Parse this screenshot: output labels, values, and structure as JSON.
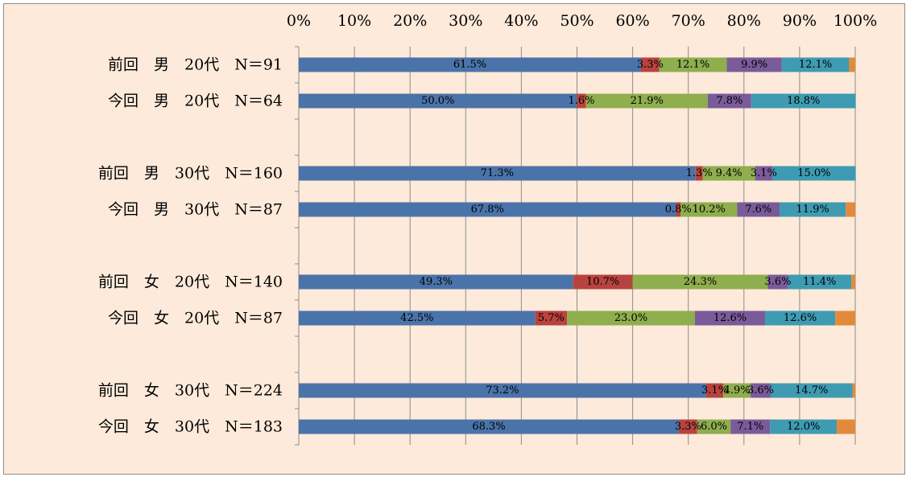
{
  "chart_data": {
    "type": "bar",
    "orientation": "horizontal",
    "stacked": "percent",
    "xlim": [
      0,
      100
    ],
    "x_ticks": [
      "0%",
      "10%",
      "20%",
      "30%",
      "40%",
      "50%",
      "60%",
      "70%",
      "80%",
      "90%",
      "100%"
    ],
    "grid": true,
    "legend": "none",
    "colors": [
      "#4a73a9",
      "#b8433e",
      "#8fae4e",
      "#7a5b9a",
      "#3e9bb2",
      "#e38a3a"
    ],
    "rows": [
      {
        "label": "前回　男　20代　N＝91",
        "values": [
          61.5,
          3.3,
          12.1,
          9.9,
          12.1,
          1.1
        ],
        "labels": [
          "61.5%",
          "3.3%",
          "12.1%",
          "9.9%",
          "12.1%",
          ""
        ]
      },
      {
        "label": "今回　男　20代　N＝64",
        "values": [
          50.0,
          1.6,
          21.9,
          7.8,
          18.8,
          0
        ],
        "labels": [
          "50.0%",
          "1.6%",
          "21.9%",
          "7.8%",
          "18.8%",
          ""
        ]
      },
      {
        "label": "",
        "values": []
      },
      {
        "label": "前回　男　30代　N＝160",
        "values": [
          71.3,
          1.3,
          9.4,
          3.1,
          15.0,
          0
        ],
        "labels": [
          "71.3%",
          "1.3%",
          "9.4%",
          "3.1%",
          "15.0%",
          ""
        ]
      },
      {
        "label": "今回　男　30代　N＝87",
        "values": [
          67.8,
          0.8,
          10.2,
          7.6,
          11.9,
          1.7
        ],
        "labels": [
          "67.8%",
          "0.8%",
          "10.2%",
          "7.6%",
          "11.9%",
          ""
        ]
      },
      {
        "label": "",
        "values": []
      },
      {
        "label": "前回　女　20代　N＝140",
        "values": [
          49.3,
          10.7,
          24.3,
          3.6,
          11.4,
          0.7
        ],
        "labels": [
          "49.3%",
          "10.7%",
          "24.3%",
          "3.6%",
          "11.4%",
          ""
        ]
      },
      {
        "label": "今回　女　20代　N＝87",
        "values": [
          42.5,
          5.7,
          23.0,
          12.6,
          12.6,
          3.6
        ],
        "labels": [
          "42.5%",
          "5.7%",
          "23.0%",
          "12.6%",
          "12.6%",
          ""
        ]
      },
      {
        "label": "",
        "values": []
      },
      {
        "label": "前回　女　30代　N＝224",
        "values": [
          73.2,
          3.1,
          4.9,
          3.6,
          14.7,
          0.5
        ],
        "labels": [
          "73.2%",
          "3.1%",
          "4.9%",
          "3.6%",
          "14.7%",
          ""
        ]
      },
      {
        "label": "今回　女　30代　N＝183",
        "values": [
          68.3,
          3.3,
          6.0,
          7.1,
          12.0,
          3.3
        ],
        "labels": [
          "68.3%",
          "3.3%",
          "6.0%",
          "7.1%",
          "12.0%",
          ""
        ]
      }
    ]
  }
}
